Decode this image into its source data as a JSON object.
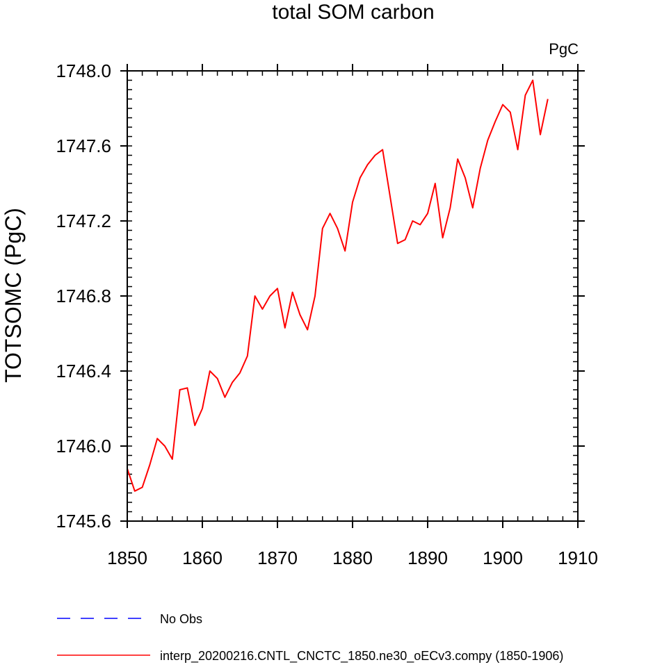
{
  "chart_data": {
    "type": "line",
    "title": "total SOM carbon",
    "units_label": "PgC",
    "xlabel": "",
    "ylabel": "TOTSOMC  (PgC)",
    "xlim": [
      1850,
      1910
    ],
    "ylim": [
      1745.6,
      1748.0
    ],
    "x_ticks": [
      1850,
      1860,
      1870,
      1880,
      1890,
      1900,
      1910
    ],
    "x_tick_labels": [
      "1850",
      "1860",
      "1870",
      "1880",
      "1890",
      "1900",
      "1910"
    ],
    "y_ticks": [
      1745.6,
      1746.0,
      1746.4,
      1746.8,
      1747.2,
      1747.6,
      1748.0
    ],
    "y_tick_labels": [
      "1745.6",
      "1746.0",
      "1746.4",
      "1746.8",
      "1747.2",
      "1747.6",
      "1748.0"
    ],
    "grid": false,
    "legend_position": "bottom-left",
    "series": [
      {
        "name": "interp_20200216.CNTL_CNCTC_1850.ne30_oECv3.compy (1850-1906)",
        "color": "#ff0000",
        "style": "solid",
        "x": [
          1850,
          1851,
          1852,
          1853,
          1854,
          1855,
          1856,
          1857,
          1858,
          1859,
          1860,
          1861,
          1862,
          1863,
          1864,
          1865,
          1866,
          1867,
          1868,
          1869,
          1870,
          1871,
          1872,
          1873,
          1874,
          1875,
          1876,
          1877,
          1878,
          1879,
          1880,
          1881,
          1882,
          1883,
          1884,
          1885,
          1886,
          1887,
          1888,
          1889,
          1890,
          1891,
          1892,
          1893,
          1894,
          1895,
          1896,
          1897,
          1898,
          1899,
          1900,
          1901,
          1902,
          1903,
          1904,
          1905,
          1906
        ],
        "values": [
          1745.88,
          1745.76,
          1745.78,
          1745.9,
          1746.04,
          1746.0,
          1745.93,
          1746.3,
          1746.31,
          1746.11,
          1746.2,
          1746.4,
          1746.36,
          1746.26,
          1746.34,
          1746.39,
          1746.48,
          1746.8,
          1746.73,
          1746.8,
          1746.84,
          1746.63,
          1746.82,
          1746.7,
          1746.62,
          1746.8,
          1747.16,
          1747.24,
          1747.16,
          1747.04,
          1747.3,
          1747.43,
          1747.5,
          1747.55,
          1747.58,
          1747.33,
          1747.08,
          1747.1,
          1747.2,
          1747.18,
          1747.24,
          1747.4,
          1747.11,
          1747.27,
          1747.53,
          1747.43,
          1747.27,
          1747.48,
          1747.63,
          1747.73,
          1747.82,
          1747.78,
          1747.58,
          1747.87,
          1747.95,
          1747.66,
          1747.85
        ]
      }
    ],
    "legend_entries": [
      {
        "label": "No Obs",
        "color": "#0000ff",
        "style": "dashed"
      },
      {
        "label": "interp_20200216.CNTL_CNCTC_1850.ne30_oECv3.compy (1850-1906)",
        "color": "#ff0000",
        "style": "solid"
      }
    ]
  }
}
